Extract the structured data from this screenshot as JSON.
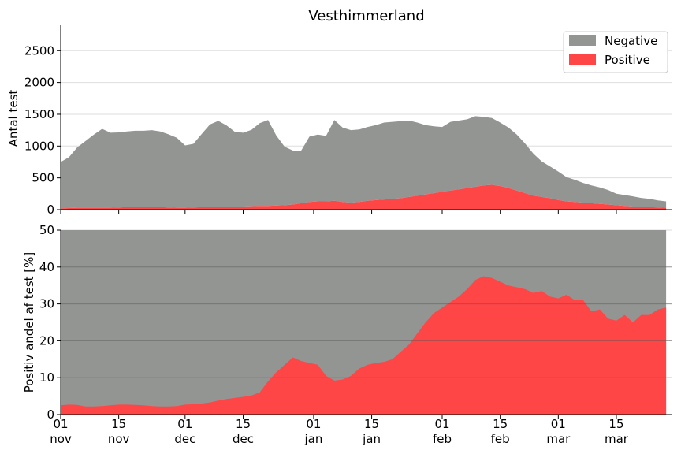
{
  "chart_data": [
    {
      "type": "area",
      "title": "Vesthimmerland",
      "ylabel": "Antal test",
      "ylim": [
        0,
        2900
      ],
      "yticks": [
        0,
        500,
        1000,
        1500,
        2000,
        2500
      ],
      "legend": {
        "placement": "top-right"
      },
      "grid": true,
      "x": [
        "2020-11-01",
        "2020-11-03",
        "2020-11-05",
        "2020-11-07",
        "2020-11-09",
        "2020-11-11",
        "2020-11-13",
        "2020-11-15",
        "2020-11-17",
        "2020-11-19",
        "2020-11-21",
        "2020-11-23",
        "2020-11-25",
        "2020-11-27",
        "2020-11-29",
        "2020-12-01",
        "2020-12-03",
        "2020-12-05",
        "2020-12-07",
        "2020-12-09",
        "2020-12-11",
        "2020-12-13",
        "2020-12-15",
        "2020-12-17",
        "2020-12-19",
        "2020-12-21",
        "2020-12-23",
        "2020-12-25",
        "2020-12-27",
        "2020-12-29",
        "2020-12-31",
        "2021-01-02",
        "2021-01-04",
        "2021-01-06",
        "2021-01-08",
        "2021-01-10",
        "2021-01-12",
        "2021-01-14",
        "2021-01-16",
        "2021-01-18",
        "2021-01-20",
        "2021-01-22",
        "2021-01-24",
        "2021-01-26",
        "2021-01-28",
        "2021-01-30",
        "2021-02-01",
        "2021-02-03",
        "2021-02-05",
        "2021-02-07",
        "2021-02-09",
        "2021-02-11",
        "2021-02-13",
        "2021-02-15",
        "2021-02-17",
        "2021-02-19",
        "2021-02-21",
        "2021-02-23",
        "2021-02-25",
        "2021-02-27",
        "2021-03-01",
        "2021-03-03",
        "2021-03-05",
        "2021-03-07",
        "2021-03-09",
        "2021-03-11",
        "2021-03-13",
        "2021-03-15",
        "2021-03-17",
        "2021-03-19",
        "2021-03-21",
        "2021-03-23",
        "2021-03-25",
        "2021-03-27"
      ],
      "series": [
        {
          "name": "Negative",
          "color": "#939593",
          "values": [
            730,
            800,
            950,
            1050,
            1150,
            1240,
            1180,
            1180,
            1190,
            1200,
            1200,
            1210,
            1190,
            1150,
            1100,
            980,
            1000,
            1150,
            1300,
            1350,
            1280,
            1180,
            1160,
            1200,
            1300,
            1350,
            1100,
            920,
            850,
            830,
            1030,
            1050,
            1030,
            1270,
            1170,
            1140,
            1140,
            1160,
            1180,
            1210,
            1210,
            1210,
            1200,
            1150,
            1090,
            1050,
            1020,
            1080,
            1080,
            1080,
            1110,
            1080,
            1050,
            1000,
            950,
            880,
            780,
            660,
            560,
            500,
            450,
            380,
            350,
            310,
            280,
            260,
            230,
            180,
            170,
            160,
            140,
            130,
            110,
            100
          ]
        },
        {
          "name": "Positive",
          "color": "#ff4646",
          "values": [
            20,
            25,
            30,
            30,
            30,
            30,
            30,
            35,
            40,
            40,
            40,
            40,
            40,
            35,
            30,
            30,
            35,
            40,
            40,
            45,
            45,
            45,
            50,
            55,
            60,
            60,
            65,
            70,
            80,
            100,
            120,
            130,
            130,
            140,
            120,
            110,
            120,
            140,
            150,
            160,
            170,
            180,
            200,
            220,
            240,
            260,
            280,
            300,
            320,
            340,
            360,
            380,
            390,
            370,
            340,
            300,
            260,
            220,
            200,
            180,
            150,
            130,
            120,
            110,
            100,
            90,
            80,
            70,
            60,
            50,
            45,
            40,
            35,
            30
          ]
        }
      ]
    },
    {
      "type": "area",
      "ylabel": "Positiv andel af test [%]",
      "ylim": [
        0,
        50
      ],
      "yticks": [
        0,
        10,
        20,
        30,
        40,
        50
      ],
      "grid": true,
      "x": [
        "2020-11-01",
        "2020-11-03",
        "2020-11-05",
        "2020-11-07",
        "2020-11-09",
        "2020-11-11",
        "2020-11-13",
        "2020-11-15",
        "2020-11-17",
        "2020-11-19",
        "2020-11-21",
        "2020-11-23",
        "2020-11-25",
        "2020-11-27",
        "2020-11-29",
        "2020-12-01",
        "2020-12-03",
        "2020-12-05",
        "2020-12-07",
        "2020-12-09",
        "2020-12-11",
        "2020-12-13",
        "2020-12-15",
        "2020-12-17",
        "2020-12-19",
        "2020-12-21",
        "2020-12-23",
        "2020-12-25",
        "2020-12-27",
        "2020-12-29",
        "2020-12-31",
        "2021-01-02",
        "2021-01-04",
        "2021-01-06",
        "2021-01-08",
        "2021-01-10",
        "2021-01-12",
        "2021-01-14",
        "2021-01-16",
        "2021-01-18",
        "2021-01-20",
        "2021-01-22",
        "2021-01-24",
        "2021-01-26",
        "2021-01-28",
        "2021-01-30",
        "2021-02-01",
        "2021-02-03",
        "2021-02-05",
        "2021-02-07",
        "2021-02-09",
        "2021-02-11",
        "2021-02-13",
        "2021-02-15",
        "2021-02-17",
        "2021-02-19",
        "2021-02-21",
        "2021-02-23",
        "2021-02-25",
        "2021-02-27",
        "2021-03-01",
        "2021-03-03",
        "2021-03-05",
        "2021-03-07",
        "2021-03-09",
        "2021-03-11",
        "2021-03-13",
        "2021-03-15",
        "2021-03-17",
        "2021-03-19",
        "2021-03-21",
        "2021-03-23",
        "2021-03-25",
        "2021-03-27"
      ],
      "series": [
        {
          "name": "Negative",
          "color": "#939593",
          "values": [
            50,
            50,
            50,
            50,
            50,
            50,
            50,
            50,
            50,
            50,
            50,
            50,
            50,
            50,
            50,
            50,
            50,
            50,
            50,
            50,
            50,
            50,
            50,
            50,
            50,
            50,
            50,
            50,
            50,
            50,
            50,
            50,
            50,
            50,
            50,
            50,
            50,
            50,
            50,
            50,
            50,
            50,
            50,
            50,
            50,
            50,
            50,
            50,
            50,
            50,
            50,
            50,
            50,
            50,
            50,
            50,
            50,
            50,
            50,
            50,
            50,
            50,
            50,
            50,
            50,
            50,
            50,
            50,
            50,
            50,
            50,
            50,
            50,
            50
          ]
        },
        {
          "name": "Positive",
          "color": "#ff4646",
          "values": [
            2.5,
            2.7,
            2.6,
            2.2,
            2.2,
            2.3,
            2.5,
            2.7,
            2.7,
            2.6,
            2.5,
            2.3,
            2.2,
            2.2,
            2.3,
            2.7,
            2.8,
            3.0,
            3.3,
            3.8,
            4.2,
            4.5,
            4.8,
            5.2,
            6.0,
            9.0,
            11.5,
            13.5,
            15.5,
            14.5,
            14.0,
            13.5,
            10.5,
            9.2,
            9.5,
            10.5,
            12.5,
            13.5,
            14.0,
            14.3,
            15.0,
            17.0,
            19.0,
            22.0,
            25.0,
            27.5,
            29.0,
            30.5,
            32.0,
            34.0,
            36.5,
            37.5,
            37.0,
            36.0,
            35.0,
            34.5,
            34.0,
            33.0,
            33.5,
            32.0,
            31.5,
            32.5,
            31.0,
            31.0,
            28.0,
            28.5,
            26.0,
            25.5,
            27.0,
            25.0,
            27.0,
            27.0,
            28.5,
            29.0
          ]
        }
      ]
    }
  ],
  "x_ticks": [
    {
      "date": "2020-11-01",
      "day": "01",
      "month": "nov"
    },
    {
      "date": "2020-11-15",
      "day": "15",
      "month": "nov"
    },
    {
      "date": "2020-12-01",
      "day": "01",
      "month": "dec"
    },
    {
      "date": "2020-12-15",
      "day": "15",
      "month": "dec"
    },
    {
      "date": "2021-01-01",
      "day": "01",
      "month": "jan"
    },
    {
      "date": "2021-01-15",
      "day": "15",
      "month": "jan"
    },
    {
      "date": "2021-02-01",
      "day": "01",
      "month": "feb"
    },
    {
      "date": "2021-02-15",
      "day": "15",
      "month": "feb"
    },
    {
      "date": "2021-03-01",
      "day": "01",
      "month": "mar"
    },
    {
      "date": "2021-03-15",
      "day": "15",
      "month": "mar"
    }
  ]
}
